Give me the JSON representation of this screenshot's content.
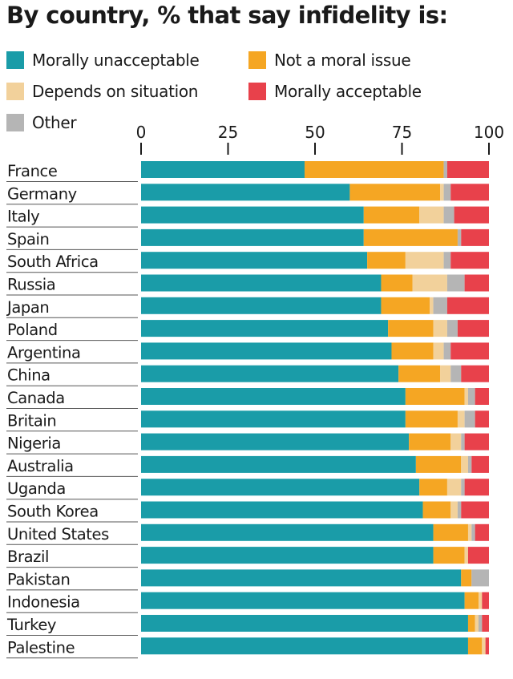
{
  "chart_data": {
    "type": "bar",
    "orientation": "horizontal",
    "stacked": true,
    "title": "By country, % that say infidelity is:",
    "xlim": [
      0,
      100
    ],
    "xticks": [
      0,
      25,
      50,
      75,
      100
    ],
    "categories": [
      "France",
      "Germany",
      "Italy",
      "Spain",
      "South Africa",
      "Russia",
      "Japan",
      "Poland",
      "Argentina",
      "China",
      "Canada",
      "Britain",
      "Nigeria",
      "Australia",
      "Uganda",
      "South Korea",
      "United States",
      "Brazil",
      "Pakistan",
      "Indonesia",
      "Turkey",
      "Palestine"
    ],
    "series": [
      {
        "name": "Morally unacceptable",
        "color": "#1a9ca8",
        "values": [
          47,
          60,
          64,
          64,
          65,
          69,
          69,
          71,
          72,
          74,
          76,
          76,
          77,
          79,
          80,
          81,
          84,
          84,
          92,
          93,
          94,
          94
        ]
      },
      {
        "name": "Not a moral issue",
        "color": "#f5a623",
        "values": [
          40,
          26,
          16,
          27,
          11,
          9,
          14,
          13,
          12,
          12,
          17,
          15,
          12,
          13,
          8,
          8,
          10,
          9,
          3,
          4,
          2,
          4
        ]
      },
      {
        "name": "Depends on situation",
        "color": "#f2d19b",
        "values": [
          0,
          1,
          7,
          0,
          11,
          10,
          1,
          4,
          3,
          3,
          1,
          2,
          3,
          2,
          4,
          2,
          1,
          1,
          0,
          1,
          1,
          1
        ]
      },
      {
        "name": "Other",
        "color": "#b5b5b5",
        "values": [
          1,
          2,
          3,
          1,
          2,
          5,
          4,
          3,
          2,
          3,
          2,
          3,
          1,
          1,
          1,
          1,
          1,
          0,
          5,
          0,
          1,
          0
        ]
      },
      {
        "name": "Morally acceptable",
        "color": "#e8414b",
        "values": [
          12,
          11,
          10,
          8,
          11,
          7,
          12,
          9,
          11,
          8,
          4,
          4,
          7,
          5,
          7,
          8,
          4,
          6,
          0,
          2,
          2,
          1
        ]
      }
    ]
  },
  "legend": {
    "morally_unacceptable": "Morally unacceptable",
    "not_moral_issue": "Not a moral issue",
    "depends": "Depends on situation",
    "morally_acceptable": "Morally acceptable",
    "other": "Other"
  }
}
